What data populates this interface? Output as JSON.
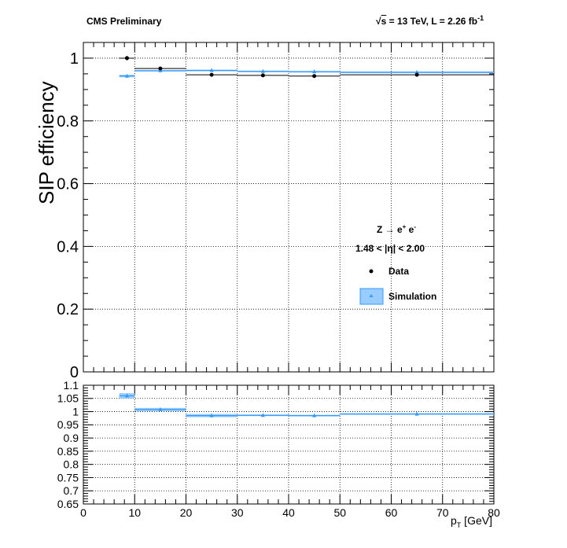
{
  "header": {
    "left": "CMS Preliminary",
    "sqrt_s": "s",
    "energy_text": " = 13 TeV, L = 2.26 fb",
    "energy_sup": "-1"
  },
  "legend": {
    "process_main": "Z → e",
    "process_sup1": "+",
    "process_mid": " e",
    "process_sup2": "-",
    "eta_range": "1.48 < |η| < 2.00",
    "data_label": "Data",
    "sim_label": "Simulation"
  },
  "colors": {
    "simulation": "#3399ff",
    "simulation_fill": "#99ccff",
    "data": "#000000"
  },
  "chart_data": [
    {
      "type": "scatter",
      "panel": "main",
      "title": "",
      "xlabel": "p_T [GeV]",
      "ylabel": "SIP efficiency",
      "xlim": [
        0,
        80
      ],
      "ylim": [
        0,
        1.05
      ],
      "yticks": [
        "0",
        "0.2",
        "0.4",
        "0.6",
        "0.8",
        "1"
      ],
      "xticks": [
        "0",
        "10",
        "20",
        "30",
        "40",
        "50",
        "60",
        "70",
        "80"
      ],
      "grid": true,
      "legend_placement": "center-right",
      "bins": [
        [
          7,
          10
        ],
        [
          10,
          20
        ],
        [
          20,
          30
        ],
        [
          30,
          40
        ],
        [
          40,
          50
        ],
        [
          50,
          80
        ]
      ],
      "series": [
        {
          "name": "Data",
          "marker": "circle",
          "x": [
            8.5,
            15,
            25,
            35,
            45,
            65
          ],
          "y": [
            1.0,
            0.967,
            0.947,
            0.945,
            0.943,
            0.947
          ],
          "yerr": [
            0.007,
            0.005,
            0.005,
            0.003,
            0.003,
            0.003
          ]
        },
        {
          "name": "Simulation",
          "marker": "triangle",
          "x": [
            8.5,
            15,
            25,
            35,
            45,
            65
          ],
          "y": [
            0.943,
            0.96,
            0.961,
            0.958,
            0.957,
            0.955
          ],
          "yerr": [
            0.004,
            0.002,
            0.002,
            0.002,
            0.002,
            0.002
          ]
        }
      ]
    },
    {
      "type": "scatter",
      "panel": "ratio",
      "xlabel": "p_T [GeV]",
      "ylabel": "",
      "xlim": [
        0,
        80
      ],
      "ylim": [
        0.65,
        1.1
      ],
      "yticks": [
        "0.65",
        "0.7",
        "0.75",
        "0.8",
        "0.85",
        "0.9",
        "0.95",
        "1",
        "1.05",
        "1.1"
      ],
      "xticks": [
        "0",
        "10",
        "20",
        "30",
        "40",
        "50",
        "60",
        "70",
        "80"
      ],
      "grid": true,
      "bins": [
        [
          7,
          10
        ],
        [
          10,
          20
        ],
        [
          20,
          30
        ],
        [
          30,
          40
        ],
        [
          40,
          50
        ],
        [
          50,
          80
        ]
      ],
      "x": [
        8.5,
        15,
        25,
        35,
        45,
        65
      ],
      "y": [
        1.06,
        1.008,
        0.985,
        0.986,
        0.985,
        0.991
      ],
      "yerr": [
        0.01,
        0.006,
        0.006,
        0.003,
        0.003,
        0.003
      ]
    }
  ]
}
